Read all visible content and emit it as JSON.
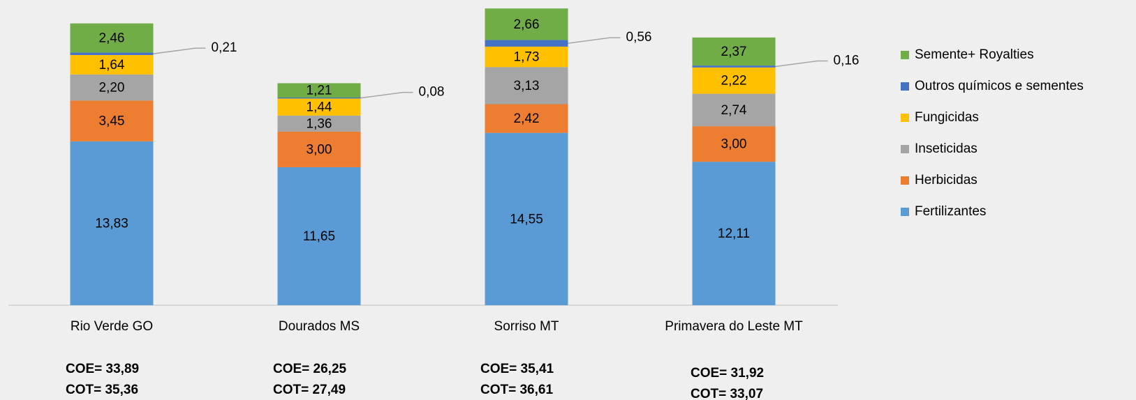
{
  "chart_data": {
    "type": "stacked_bar",
    "categories": [
      "Rio Verde GO",
      "Dourados MS",
      "Sorriso MT",
      "Primavera do Leste MT"
    ],
    "series": [
      {
        "name": "Fertilizantes",
        "color": "#5b9bd5",
        "values": [
          13.83,
          11.65,
          14.55,
          12.11
        ],
        "value_labels": [
          "13,83",
          "11,65",
          "14,55",
          "12,11"
        ]
      },
      {
        "name": "Herbicidas",
        "color": "#ed7d31",
        "values": [
          3.45,
          3.0,
          2.42,
          3.0
        ],
        "value_labels": [
          "3,45",
          "3,00",
          "2,42",
          "3,00"
        ]
      },
      {
        "name": "Inseticidas",
        "color": "#a5a5a5",
        "values": [
          2.2,
          1.36,
          3.13,
          2.74
        ],
        "value_labels": [
          "2,20",
          "1,36",
          "3,13",
          "2,74"
        ]
      },
      {
        "name": "Fungicidas",
        "color": "#ffc000",
        "values": [
          1.64,
          1.44,
          1.73,
          2.22
        ],
        "value_labels": [
          "1,64",
          "1,44",
          "1,73",
          "2,22"
        ]
      },
      {
        "name": "Outros químicos e sementes",
        "color": "#4472c4",
        "values": [
          0.21,
          0.08,
          0.56,
          0.16
        ],
        "value_labels": [
          "0,21",
          "0,08",
          "0,56",
          "0,16"
        ]
      },
      {
        "name": "Semente+ Royalties",
        "color": "#70ad47",
        "values": [
          2.46,
          1.21,
          2.66,
          2.37
        ],
        "value_labels": [
          "2,46",
          "1,21",
          "2,66",
          "2,37"
        ]
      }
    ],
    "notes": [
      [
        "COE= 33,89",
        "COT= 35,36"
      ],
      [
        "COE= 26,25",
        "COT= 27,49"
      ],
      [
        "COE= 35,41",
        "COT= 36,61"
      ],
      [
        "COE= 31,92",
        "COT= 33,07"
      ]
    ]
  }
}
